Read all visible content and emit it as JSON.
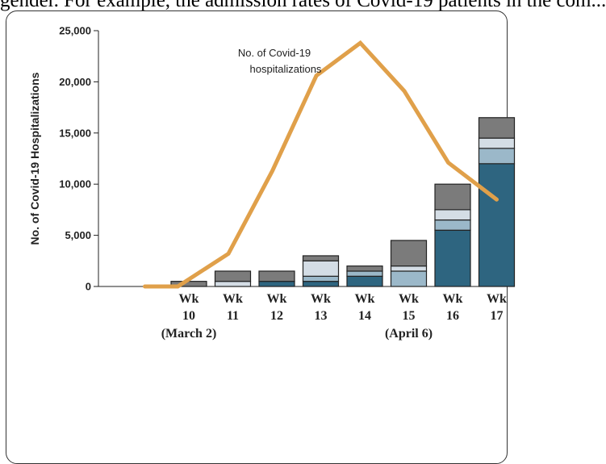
{
  "page": {
    "top_text": "gender. For example, the admission rates of Covid-19 patients in the com..."
  },
  "chart_data": {
    "type": "bar",
    "title": "",
    "xlabel": "",
    "ylabel": "No. of Covid-19 Hospitalizations",
    "ylim": [
      0,
      25000
    ],
    "yticks": [
      "0",
      "5,000",
      "10,000",
      "15,000",
      "20,000",
      "25,000"
    ],
    "ytick_values": [
      0,
      5000,
      10000,
      15000,
      20000,
      25000
    ],
    "categories": [
      "Wk 10",
      "Wk 11",
      "Wk 12",
      "Wk 13",
      "Wk 14",
      "Wk 15",
      "Wk 16",
      "Wk 17"
    ],
    "category_lines": [
      [
        "Wk",
        "10",
        "(March 2)"
      ],
      [
        "Wk",
        "11",
        ""
      ],
      [
        "Wk",
        "12",
        ""
      ],
      [
        "Wk",
        "13",
        ""
      ],
      [
        "Wk",
        "14",
        ""
      ],
      [
        "Wk",
        "15",
        "(April 6)"
      ],
      [
        "Wk",
        "16",
        ""
      ],
      [
        "Wk",
        "17",
        ""
      ]
    ],
    "stacked_series": [
      {
        "color": "#2e6580",
        "values": [
          0,
          0,
          500,
          500,
          1000,
          0,
          5500,
          12000
        ]
      },
      {
        "color": "#9bb8c9",
        "values": [
          0,
          0,
          0,
          500,
          500,
          1500,
          1000,
          1500
        ]
      },
      {
        "color": "#d4dde5",
        "values": [
          0,
          500,
          0,
          1500,
          0,
          500,
          1000,
          1000
        ]
      },
      {
        "color": "#7b7b7b",
        "values": [
          500,
          1000,
          1000,
          500,
          500,
          2500,
          2500,
          2000
        ]
      }
    ],
    "line_series": {
      "name": "No. of Covid-19 hospitalizations",
      "label_lines": [
        "No. of Covid-19",
        "hospitalizations"
      ],
      "color": "#e0a04a",
      "x": [
        9.0,
        9.75,
        10.9,
        11.9,
        12.9,
        13.9,
        14.9,
        15.9,
        17.0
      ],
      "values": [
        0,
        0,
        3200,
        11300,
        20600,
        23800,
        19100,
        12100,
        8500
      ]
    },
    "grid": false,
    "legend": "inline annotation"
  }
}
